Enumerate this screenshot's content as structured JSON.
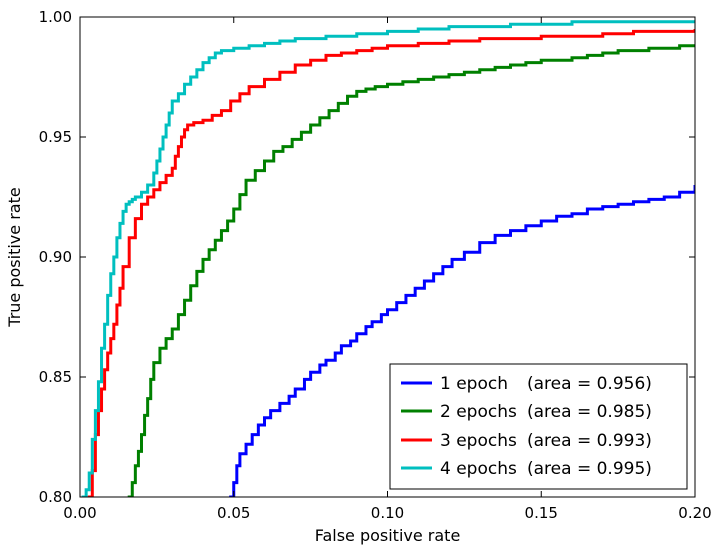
{
  "chart_data": {
    "type": "line",
    "title": "",
    "xlabel": "False positive rate",
    "ylabel": "True positive rate",
    "xlim": [
      0.0,
      0.2
    ],
    "ylim": [
      0.8,
      1.0
    ],
    "xticks": [
      0.0,
      0.05,
      0.1,
      0.15,
      0.2
    ],
    "xtick_labels": [
      "0.00",
      "0.05",
      "0.10",
      "0.15",
      "0.20"
    ],
    "yticks": [
      0.8,
      0.85,
      0.9,
      0.95,
      1.0
    ],
    "ytick_labels": [
      "0.80",
      "0.85",
      "0.90",
      "0.95",
      "1.00"
    ],
    "grid": false,
    "legend_position": "lower-right",
    "series": [
      {
        "name": "1 epoch",
        "legend_name": "1 epoch  ",
        "area_label": "(area = 0.956)",
        "color": "#0000ff",
        "x": [
          0.049,
          0.05,
          0.051,
          0.052,
          0.054,
          0.056,
          0.058,
          0.06,
          0.062,
          0.065,
          0.068,
          0.07,
          0.073,
          0.075,
          0.078,
          0.08,
          0.083,
          0.085,
          0.088,
          0.09,
          0.093,
          0.095,
          0.098,
          0.1,
          0.103,
          0.106,
          0.109,
          0.112,
          0.115,
          0.118,
          0.121,
          0.125,
          0.13,
          0.135,
          0.14,
          0.145,
          0.15,
          0.155,
          0.16,
          0.165,
          0.17,
          0.175,
          0.18,
          0.185,
          0.19,
          0.195,
          0.2
        ],
        "y": [
          0.8,
          0.806,
          0.813,
          0.818,
          0.822,
          0.826,
          0.83,
          0.833,
          0.836,
          0.839,
          0.842,
          0.845,
          0.849,
          0.852,
          0.855,
          0.857,
          0.86,
          0.863,
          0.865,
          0.868,
          0.871,
          0.873,
          0.876,
          0.878,
          0.881,
          0.884,
          0.887,
          0.89,
          0.893,
          0.896,
          0.899,
          0.902,
          0.906,
          0.909,
          0.911,
          0.913,
          0.915,
          0.917,
          0.918,
          0.92,
          0.921,
          0.922,
          0.923,
          0.924,
          0.925,
          0.927,
          0.93
        ]
      },
      {
        "name": "2 epochs",
        "legend_name": "2 epochs",
        "area_label": "(area = 0.985)",
        "color": "#008000",
        "x": [
          0.016,
          0.017,
          0.018,
          0.019,
          0.02,
          0.021,
          0.022,
          0.023,
          0.024,
          0.026,
          0.028,
          0.03,
          0.032,
          0.034,
          0.036,
          0.038,
          0.04,
          0.042,
          0.044,
          0.046,
          0.048,
          0.05,
          0.052,
          0.054,
          0.057,
          0.06,
          0.063,
          0.066,
          0.069,
          0.072,
          0.075,
          0.078,
          0.081,
          0.084,
          0.087,
          0.09,
          0.093,
          0.096,
          0.1,
          0.105,
          0.11,
          0.115,
          0.12,
          0.125,
          0.13,
          0.135,
          0.14,
          0.145,
          0.15,
          0.155,
          0.16,
          0.165,
          0.17,
          0.175,
          0.18,
          0.185,
          0.19,
          0.195,
          0.2
        ],
        "y": [
          0.8,
          0.806,
          0.813,
          0.819,
          0.826,
          0.834,
          0.841,
          0.849,
          0.856,
          0.862,
          0.866,
          0.87,
          0.876,
          0.882,
          0.888,
          0.894,
          0.899,
          0.903,
          0.907,
          0.911,
          0.915,
          0.92,
          0.926,
          0.932,
          0.936,
          0.94,
          0.944,
          0.946,
          0.949,
          0.952,
          0.955,
          0.958,
          0.961,
          0.964,
          0.967,
          0.969,
          0.97,
          0.971,
          0.972,
          0.973,
          0.974,
          0.975,
          0.976,
          0.977,
          0.978,
          0.979,
          0.98,
          0.981,
          0.982,
          0.982,
          0.983,
          0.984,
          0.985,
          0.986,
          0.986,
          0.987,
          0.987,
          0.988,
          0.988
        ]
      },
      {
        "name": "3 epochs",
        "legend_name": "3 epochs",
        "area_label": "(area = 0.993)",
        "color": "#ff0000",
        "x": [
          0.003,
          0.004,
          0.005,
          0.006,
          0.007,
          0.008,
          0.009,
          0.01,
          0.011,
          0.012,
          0.013,
          0.014,
          0.016,
          0.018,
          0.02,
          0.022,
          0.024,
          0.026,
          0.028,
          0.03,
          0.031,
          0.032,
          0.033,
          0.034,
          0.035,
          0.037,
          0.04,
          0.043,
          0.046,
          0.049,
          0.052,
          0.055,
          0.06,
          0.065,
          0.07,
          0.075,
          0.08,
          0.085,
          0.09,
          0.095,
          0.1,
          0.11,
          0.12,
          0.13,
          0.14,
          0.15,
          0.16,
          0.17,
          0.18,
          0.19,
          0.2
        ],
        "y": [
          0.8,
          0.811,
          0.826,
          0.836,
          0.845,
          0.853,
          0.86,
          0.866,
          0.872,
          0.88,
          0.887,
          0.896,
          0.908,
          0.916,
          0.922,
          0.925,
          0.928,
          0.931,
          0.934,
          0.937,
          0.942,
          0.946,
          0.95,
          0.953,
          0.955,
          0.956,
          0.957,
          0.959,
          0.961,
          0.965,
          0.968,
          0.971,
          0.974,
          0.977,
          0.98,
          0.982,
          0.984,
          0.985,
          0.986,
          0.987,
          0.988,
          0.989,
          0.99,
          0.991,
          0.991,
          0.992,
          0.992,
          0.993,
          0.994,
          0.994,
          0.995
        ]
      },
      {
        "name": "4 epochs",
        "legend_name": "4 epochs",
        "area_label": "(area = 0.995)",
        "color": "#00bfbf",
        "x": [
          0.001,
          0.002,
          0.003,
          0.004,
          0.005,
          0.006,
          0.007,
          0.008,
          0.009,
          0.01,
          0.011,
          0.012,
          0.013,
          0.014,
          0.015,
          0.016,
          0.017,
          0.018,
          0.02,
          0.022,
          0.024,
          0.025,
          0.026,
          0.027,
          0.028,
          0.029,
          0.03,
          0.032,
          0.034,
          0.036,
          0.038,
          0.04,
          0.042,
          0.044,
          0.046,
          0.05,
          0.055,
          0.06,
          0.065,
          0.07,
          0.08,
          0.09,
          0.1,
          0.11,
          0.12,
          0.13,
          0.14,
          0.15,
          0.16,
          0.17,
          0.18,
          0.19,
          0.2
        ],
        "y": [
          0.8,
          0.803,
          0.81,
          0.824,
          0.836,
          0.848,
          0.862,
          0.872,
          0.884,
          0.893,
          0.9,
          0.908,
          0.914,
          0.919,
          0.922,
          0.923,
          0.924,
          0.925,
          0.927,
          0.93,
          0.935,
          0.94,
          0.945,
          0.95,
          0.955,
          0.96,
          0.965,
          0.968,
          0.972,
          0.975,
          0.978,
          0.981,
          0.983,
          0.985,
          0.986,
          0.987,
          0.988,
          0.989,
          0.99,
          0.991,
          0.992,
          0.993,
          0.994,
          0.995,
          0.996,
          0.996,
          0.997,
          0.997,
          0.998,
          0.998,
          0.998,
          0.998,
          0.998
        ]
      }
    ]
  }
}
